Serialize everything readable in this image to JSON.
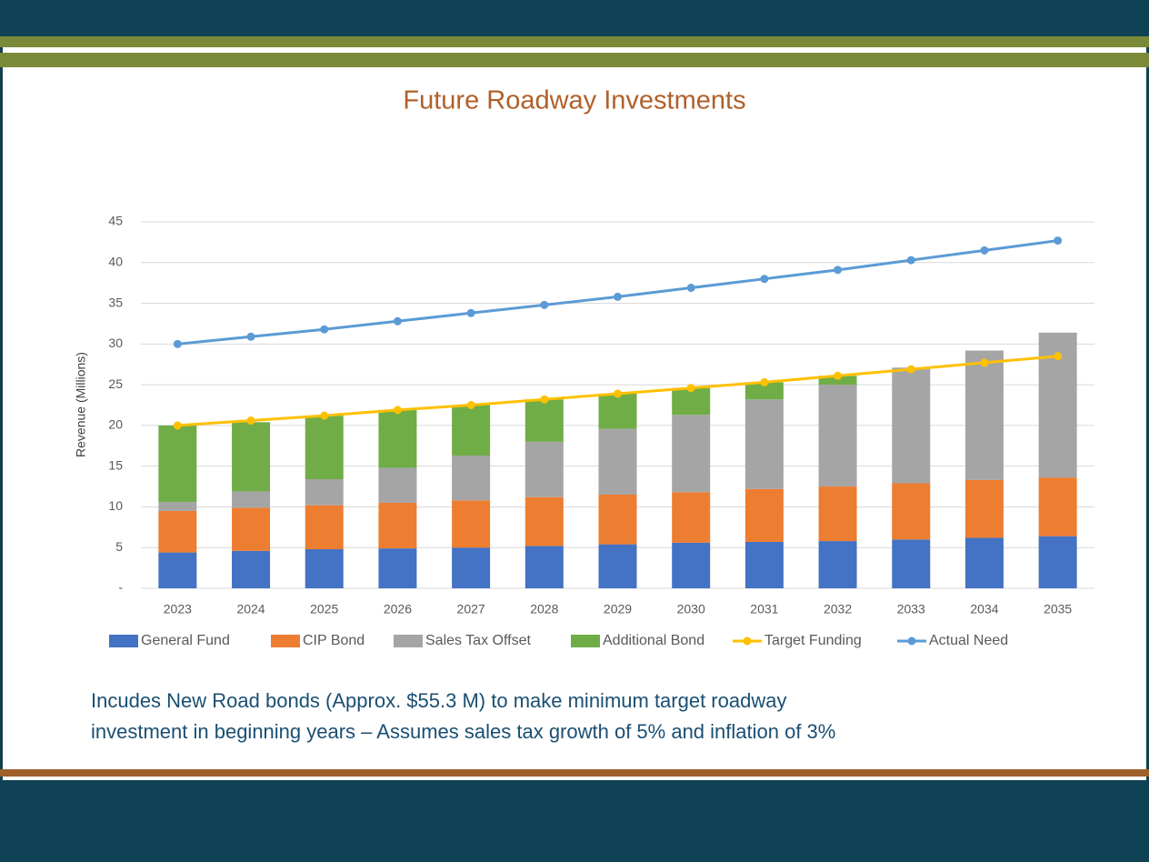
{
  "chart_data": {
    "type": "stacked-bar-line",
    "title": "Future Roadway Investments",
    "y_label": "Revenue (Millions)",
    "caption": [
      "Incudes New Road bonds (Approx. $55.3 M) to make minimum target roadway",
      "investment in beginning years – Assumes sales tax growth of 5% and inflation of 3%"
    ],
    "categories": [
      "2023",
      "2024",
      "2025",
      "2026",
      "2027",
      "2028",
      "2029",
      "2030",
      "2031",
      "2032",
      "2033",
      "2034",
      "2035"
    ],
    "series": [
      {
        "name": "General Fund",
        "kind": "bar",
        "color": "#4472c4",
        "values": [
          4.4,
          4.6,
          4.8,
          4.9,
          5.0,
          5.2,
          5.4,
          5.6,
          5.7,
          5.8,
          6.0,
          6.2,
          6.4
        ]
      },
      {
        "name": "CIP Bond",
        "kind": "bar",
        "color": "#ed7d31",
        "values": [
          5.1,
          5.3,
          5.4,
          5.6,
          5.8,
          6.0,
          6.1,
          6.2,
          6.5,
          6.7,
          6.9,
          7.1,
          7.2
        ]
      },
      {
        "name": "Sales Tax Offset",
        "kind": "bar",
        "color": "#a5a5a5",
        "values": [
          1.1,
          2.0,
          3.2,
          4.3,
          5.5,
          6.8,
          8.1,
          9.5,
          11.0,
          12.5,
          14.2,
          15.9,
          17.8
        ]
      },
      {
        "name": "Additional Bond",
        "kind": "bar",
        "color": "#70ad47",
        "values": [
          9.4,
          8.5,
          7.8,
          7.1,
          6.2,
          5.2,
          4.3,
          3.3,
          2.1,
          1.1,
          0,
          0,
          0
        ]
      },
      {
        "name": "Target Funding",
        "kind": "line",
        "color": "#ffc000",
        "values": [
          20,
          20.6,
          21.2,
          21.9,
          22.5,
          23.2,
          23.9,
          24.6,
          25.3,
          26.1,
          26.9,
          27.7,
          28.5
        ]
      },
      {
        "name": "Actual Need",
        "kind": "line",
        "color": "#5b9bd5",
        "values": [
          30,
          30.9,
          31.8,
          32.8,
          33.8,
          34.8,
          35.8,
          36.9,
          38.0,
          39.1,
          40.3,
          41.5,
          42.7
        ]
      }
    ],
    "ylim": [
      0,
      45
    ],
    "yticks": [
      {
        "value": 0,
        "label": "-"
      },
      5,
      10,
      15,
      20,
      25,
      30,
      35,
      40,
      45
    ],
    "grid": true,
    "legend": "bottom"
  }
}
